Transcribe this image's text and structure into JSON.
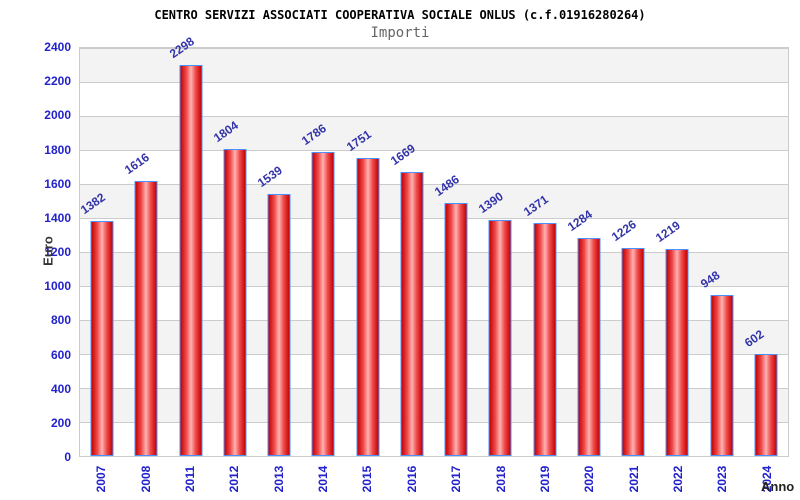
{
  "header": {
    "title": "CENTRO SERVIZI ASSOCIATI COOPERATIVA SOCIALE ONLUS (c.f.01916280264)",
    "subtitle": "Importi"
  },
  "chart_data": {
    "type": "bar",
    "title": "CENTRO SERVIZI ASSOCIATI COOPERATIVA SOCIALE ONLUS (c.f.01916280264)",
    "subtitle": "Importi",
    "categories": [
      "2007",
      "2008",
      "2011",
      "2012",
      "2013",
      "2014",
      "2015",
      "2016",
      "2017",
      "2018",
      "2019",
      "2020",
      "2021",
      "2022",
      "2023",
      "2024"
    ],
    "values": [
      1382,
      1616,
      2298,
      1804,
      1539,
      1786,
      1751,
      1669,
      1486,
      1390,
      1371,
      1284,
      1226,
      1219,
      948,
      602
    ],
    "xlabel": "Anno",
    "ylabel": "Euro",
    "ylim": [
      0,
      2400
    ],
    "ytick_step": 200,
    "grid": true,
    "legend": false,
    "band_fill": "alternating",
    "colors": {
      "bar_edge": "#4a90ff",
      "bar_dark": "#c40000",
      "bar_light": "#ffb2b2",
      "value_label": "#3333aa",
      "tick_label": "#2222cc",
      "axis_title": "#333333",
      "band_gray": "#f3f3f3",
      "gridline": "#cccccc",
      "title_color": "#000000",
      "subtitle_color": "#666666"
    }
  }
}
